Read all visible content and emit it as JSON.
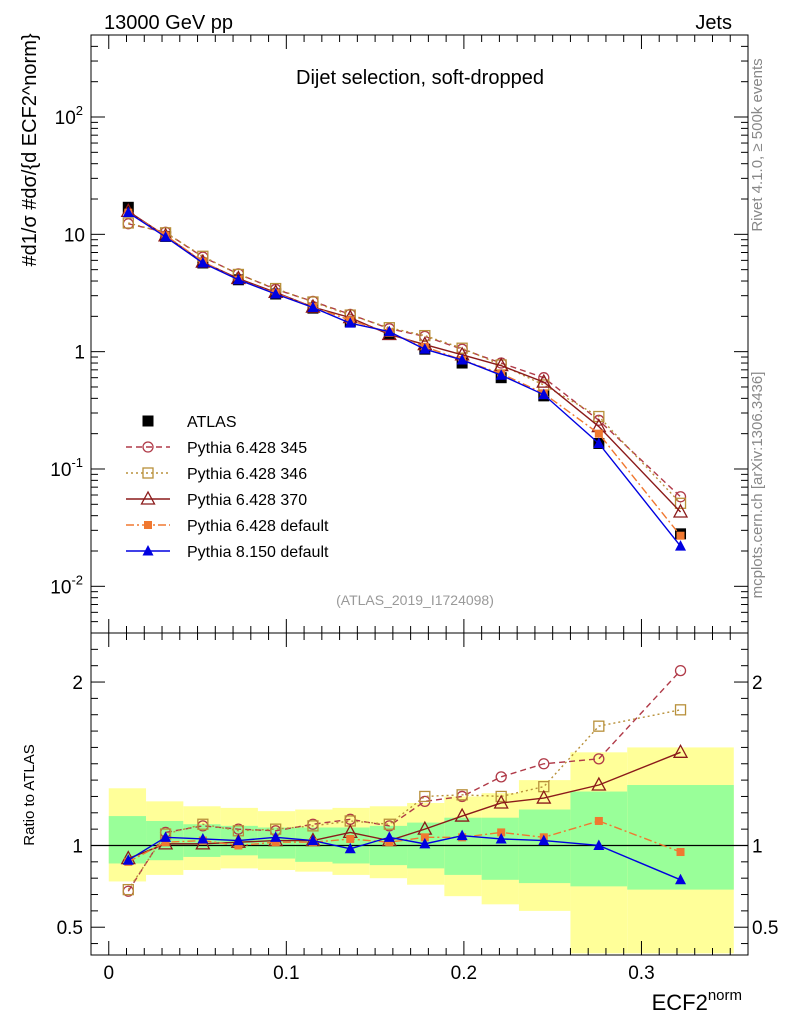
{
  "header": {
    "left": "13000 GeV pp",
    "right": "Jets"
  },
  "side_labels": {
    "rivet": "Rivet 4.1.0, ≥ 500k events",
    "mcplots": "mcplots.cern.ch [arXiv:1306.3436]"
  },
  "chart_data": [
    {
      "type": "line",
      "panel": "main",
      "title": "Dijet selection, soft-dropped",
      "analysis_id": "(ATLAS_2019_I1724098)",
      "xlabel": "ECF2^norm",
      "ylabel": "#d1/σ #dσ/{d ECF2^norm}",
      "yscale": "log",
      "xlim": [
        -0.01,
        0.36
      ],
      "ylim": [
        0.004,
        500
      ],
      "y_tick_labels": [
        "10^-2",
        "10^-1",
        "1",
        "10",
        "10^2"
      ],
      "x_tick_labels": [
        "0",
        "0.1",
        "0.2",
        "0.3"
      ],
      "x": [
        0.011,
        0.032,
        0.053,
        0.073,
        0.094,
        0.115,
        0.136,
        0.158,
        0.178,
        0.199,
        0.221,
        0.245,
        0.276,
        0.322
      ],
      "series": [
        {
          "name": "ATLAS",
          "style": "data",
          "color": "#000000",
          "marker": "filled-square",
          "values": [
            17.0,
            9.6,
            5.7,
            4.1,
            3.1,
            2.35,
            1.8,
            1.4,
            1.05,
            0.8,
            0.6,
            0.42,
            0.165,
            0.028
          ]
        },
        {
          "name": "Pythia 6.428 345",
          "color": "#b03a48",
          "marker": "open-circle",
          "dash": "6,4",
          "values": [
            12.3,
            10.4,
            6.4,
            4.6,
            3.4,
            2.68,
            2.08,
            1.57,
            1.35,
            1.05,
            0.8,
            0.6,
            0.26,
            0.058
          ]
        },
        {
          "name": "Pythia 6.428 346",
          "color": "#b8903a",
          "marker": "open-square",
          "dash": "2,3",
          "values": [
            12.5,
            10.3,
            6.5,
            4.55,
            3.45,
            2.65,
            2.05,
            1.6,
            1.37,
            1.07,
            0.77,
            0.52,
            0.28,
            0.051
          ]
        },
        {
          "name": "Pythia 6.428 370",
          "color": "#8b1a1a",
          "marker": "open-triangle",
          "dash": "",
          "values": [
            15.7,
            9.7,
            5.8,
            4.2,
            3.2,
            2.4,
            1.95,
            1.4,
            1.15,
            0.94,
            0.76,
            0.55,
            0.23,
            0.043
          ]
        },
        {
          "name": "Pythia 6.428 default",
          "color": "#f07830",
          "marker": "small-square",
          "dash": "8,3,2,3",
          "values": [
            15.3,
            9.8,
            5.85,
            4.1,
            3.15,
            2.4,
            1.85,
            1.45,
            1.1,
            0.85,
            0.65,
            0.44,
            0.2,
            0.027
          ]
        },
        {
          "name": "Pythia 8.150 default",
          "color": "#0000e0",
          "marker": "filled-triangle",
          "dash": "",
          "values": [
            15.3,
            9.5,
            5.7,
            4.1,
            3.1,
            2.38,
            1.75,
            1.48,
            1.05,
            0.85,
            0.63,
            0.43,
            0.165,
            0.022
          ]
        }
      ]
    },
    {
      "type": "line",
      "panel": "ratio",
      "ylabel": "Ratio to ATLAS",
      "xlabel": "ECF2^norm",
      "xlim": [
        -0.01,
        0.36
      ],
      "ylim": [
        0.33,
        2.3
      ],
      "y_tick_labels": [
        "0.5",
        "1",
        "2"
      ],
      "band_edges": [
        0,
        0.021,
        0.042,
        0.063,
        0.084,
        0.105,
        0.126,
        0.147,
        0.168,
        0.189,
        0.21,
        0.231,
        0.26,
        0.292,
        0.352
      ],
      "band_inner": [
        [
          0.89,
          1.18
        ],
        [
          0.91,
          1.15
        ],
        [
          0.93,
          1.13
        ],
        [
          0.94,
          1.12
        ],
        [
          0.92,
          1.11
        ],
        [
          0.9,
          1.11
        ],
        [
          0.89,
          1.11
        ],
        [
          0.88,
          1.12
        ],
        [
          0.86,
          1.14
        ],
        [
          0.82,
          1.17
        ],
        [
          0.79,
          1.17
        ],
        [
          0.77,
          1.22
        ],
        [
          0.75,
          1.33
        ],
        [
          0.73,
          1.37
        ]
      ],
      "band_outer": [
        [
          0.78,
          1.35
        ],
        [
          0.82,
          1.27
        ],
        [
          0.85,
          1.24
        ],
        [
          0.86,
          1.23
        ],
        [
          0.85,
          1.21
        ],
        [
          0.84,
          1.22
        ],
        [
          0.82,
          1.23
        ],
        [
          0.8,
          1.24
        ],
        [
          0.76,
          1.26
        ],
        [
          0.69,
          1.3
        ],
        [
          0.64,
          1.32
        ],
        [
          0.6,
          1.4
        ],
        [
          0.34,
          1.57
        ],
        [
          0.34,
          1.6
        ]
      ],
      "series": [
        {
          "name": "Pythia 6.428 345",
          "color": "#b03a48",
          "marker": "open-circle",
          "dash": "6,4",
          "values": [
            0.72,
            1.08,
            1.12,
            1.1,
            1.09,
            1.13,
            1.16,
            1.12,
            1.27,
            1.3,
            1.42,
            1.5,
            1.53,
            2.07
          ]
        },
        {
          "name": "Pythia 6.428 346",
          "color": "#b8903a",
          "marker": "open-square",
          "dash": "2,3",
          "values": [
            0.73,
            1.07,
            1.13,
            1.09,
            1.1,
            1.12,
            1.15,
            1.13,
            1.3,
            1.31,
            1.3,
            1.36,
            1.73,
            1.83
          ]
        },
        {
          "name": "Pythia 6.428 370",
          "color": "#8b1a1a",
          "marker": "open-triangle",
          "dash": "",
          "values": [
            0.92,
            1.01,
            1.01,
            1.02,
            1.03,
            1.03,
            1.08,
            1.03,
            1.1,
            1.18,
            1.26,
            1.29,
            1.37,
            1.57
          ]
        },
        {
          "name": "Pythia 6.428 default",
          "color": "#f07830",
          "marker": "small-square",
          "dash": "8,3,2,3",
          "values": [
            0.9,
            1.02,
            1.03,
            1.0,
            1.02,
            1.02,
            1.04,
            1.02,
            1.05,
            1.05,
            1.08,
            1.05,
            1.15,
            0.96
          ]
        },
        {
          "name": "Pythia 8.150 default",
          "color": "#0000e0",
          "marker": "filled-triangle",
          "dash": "",
          "values": [
            0.91,
            1.05,
            1.04,
            1.03,
            1.05,
            1.03,
            0.98,
            1.05,
            1.01,
            1.06,
            1.04,
            1.03,
            1.0,
            0.79
          ]
        }
      ]
    }
  ]
}
